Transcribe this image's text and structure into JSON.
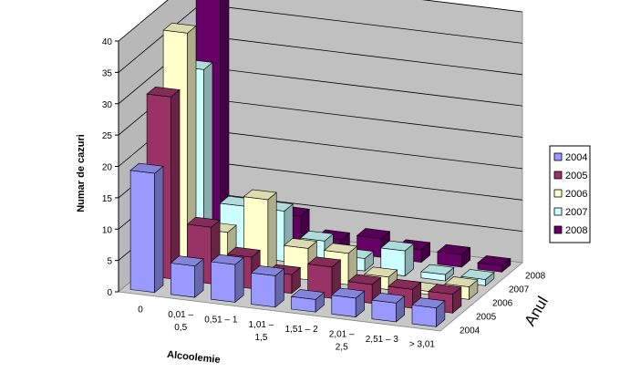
{
  "chart_data": {
    "type": "bar",
    "subtype": "3d-clustered-depth",
    "xlabel": "Alcoolemie",
    "ylabel": "Numar de cazuri",
    "zlabel": "Anul",
    "ylim": [
      0,
      40
    ],
    "yticks": [
      0,
      5,
      10,
      15,
      20,
      25,
      30,
      35,
      40
    ],
    "grid": true,
    "legend_position": "right",
    "categories": [
      [
        "0"
      ],
      [
        "0,01 –",
        "0,5"
      ],
      [
        "0,51 – 1"
      ],
      [
        "1,01 –",
        "1,5"
      ],
      [
        "1,51 – 2"
      ],
      [
        "2,01 –",
        "2,5"
      ],
      [
        "2,51 – 3"
      ],
      [
        "> 3,01"
      ]
    ],
    "series": [
      {
        "name": "2004",
        "color": "#9999FF",
        "values": [
          19,
          5,
          6,
          5,
          2,
          3,
          3,
          3
        ]
      },
      {
        "name": "2005",
        "color": "#993366",
        "values": [
          29,
          9,
          5,
          3,
          5,
          3,
          3,
          3
        ]
      },
      {
        "name": "2006",
        "color": "#FFFFCC",
        "values": [
          37,
          6,
          12,
          5,
          5,
          2,
          0.5,
          2
        ]
      },
      {
        "name": "2007",
        "color": "#CCFFFF",
        "values": [
          29,
          8,
          8,
          4,
          2,
          4,
          1,
          1
        ]
      },
      {
        "name": "2008",
        "color": "#660066",
        "values": [
          40,
          5,
          5,
          2,
          3,
          2,
          2,
          1
        ]
      }
    ]
  }
}
